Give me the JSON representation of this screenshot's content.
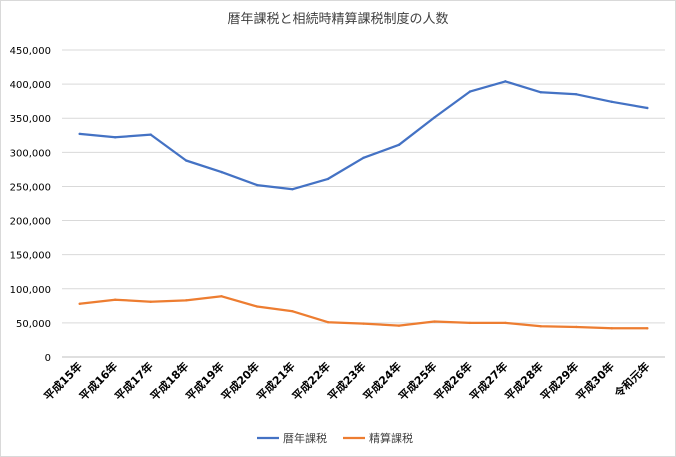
{
  "chart_data": {
    "type": "line",
    "title": "暦年課税と相続時精算課税制度の人数",
    "categories": [
      "平成15年",
      "平成16年",
      "平成17年",
      "平成18年",
      "平成19年",
      "平成20年",
      "平成21年",
      "平成22年",
      "平成23年",
      "平成24年",
      "平成25年",
      "平成26年",
      "平成27年",
      "平成28年",
      "平成29年",
      "平成30年",
      "令和元年"
    ],
    "series": [
      {
        "name": "暦年課税",
        "color": "#4472c4",
        "values": [
          327000,
          322000,
          326000,
          288000,
          271000,
          252000,
          246000,
          261000,
          292000,
          311000,
          351000,
          389000,
          404000,
          388000,
          385000,
          374000,
          365000
        ]
      },
      {
        "name": "精算課税",
        "color": "#ed7d31",
        "values": [
          78000,
          84000,
          81000,
          83000,
          89000,
          74000,
          67000,
          51000,
          49000,
          46000,
          52000,
          50000,
          50000,
          45000,
          44000,
          42000,
          42000
        ]
      }
    ],
    "ylim": [
      0,
      450000
    ],
    "yticks": [
      0,
      50000,
      100000,
      150000,
      200000,
      250000,
      300000,
      350000,
      400000,
      450000
    ],
    "ytick_labels": [
      "0",
      "50,000",
      "100,000",
      "150,000",
      "200,000",
      "250,000",
      "300,000",
      "350,000",
      "400,000",
      "450,000"
    ],
    "grid": true,
    "legend_position": "bottom"
  }
}
